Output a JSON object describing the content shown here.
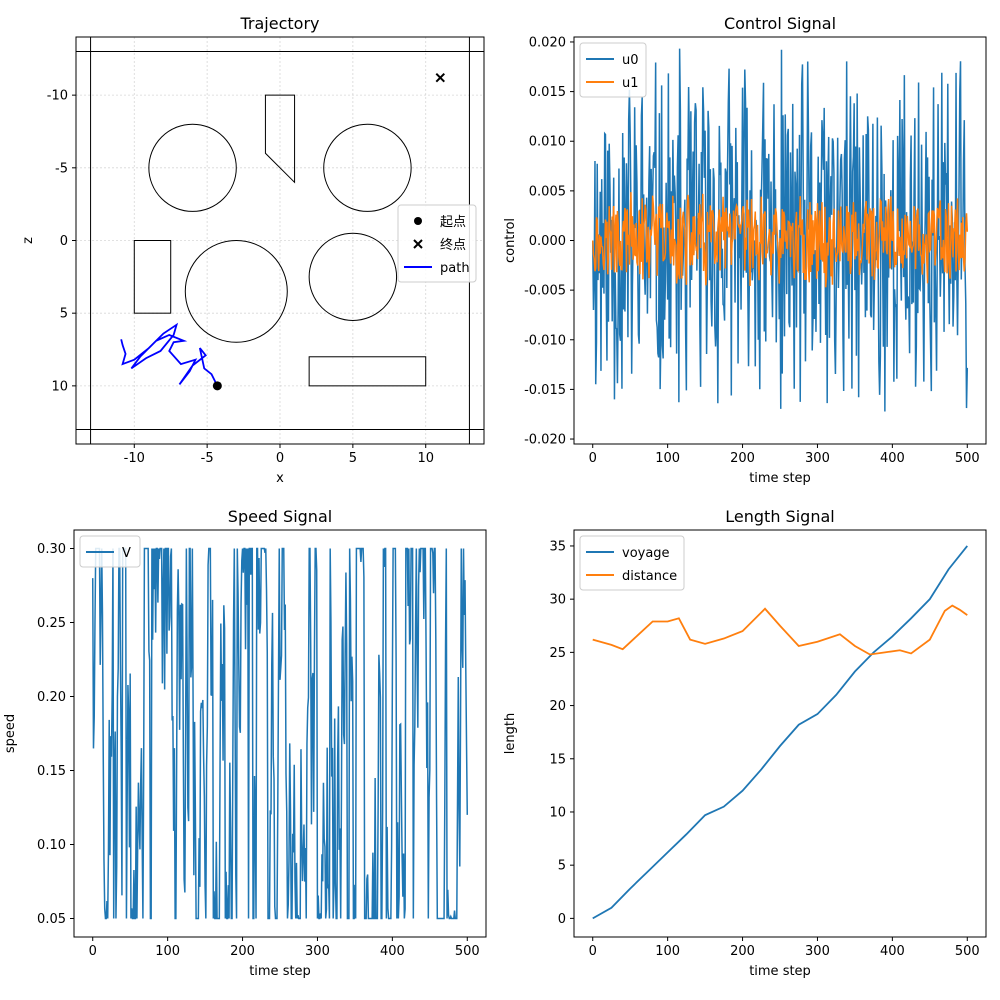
{
  "chart_data": [
    {
      "type": "scatter",
      "title": "Trajectory",
      "xlabel": "x",
      "ylabel": "z",
      "xlim": [
        -14,
        14
      ],
      "ylim": [
        14,
        -14
      ],
      "y_inverted": true,
      "grid": true,
      "xticks": [
        -10,
        -5,
        0,
        5,
        10
      ],
      "yticks": [
        -10,
        -5,
        0,
        5,
        10
      ],
      "tick_labels_x": [
        "-10",
        "-5",
        "0",
        "5",
        "10"
      ],
      "tick_labels_y": [
        "-10",
        "-5",
        "0",
        "5",
        "10"
      ],
      "legend": {
        "placement": "center-right",
        "entries": [
          "起点",
          "终点",
          "path"
        ]
      },
      "start": {
        "label": "起点",
        "x": -4.3,
        "z": 10.0
      },
      "goal": {
        "label": "终点",
        "x": 11.0,
        "z": -11.2
      },
      "path_color": "#0000ff",
      "path": [
        [
          -4.3,
          10.0
        ],
        [
          -4.7,
          9.2
        ],
        [
          -5.2,
          8.8
        ],
        [
          -5.5,
          7.4
        ],
        [
          -5.1,
          7.9
        ],
        [
          -6.0,
          8.6
        ],
        [
          -6.9,
          9.9
        ],
        [
          -6.2,
          9.0
        ],
        [
          -5.8,
          8.2
        ],
        [
          -6.8,
          8.5
        ],
        [
          -7.6,
          7.6
        ],
        [
          -7.3,
          7.0
        ],
        [
          -6.6,
          6.9
        ],
        [
          -7.6,
          6.5
        ],
        [
          -8.5,
          6.9
        ],
        [
          -9.6,
          8.0
        ],
        [
          -10.2,
          8.8
        ],
        [
          -9.2,
          8.1
        ],
        [
          -8.2,
          7.6
        ],
        [
          -7.3,
          6.5
        ],
        [
          -7.1,
          5.8
        ],
        [
          -8.0,
          6.4
        ],
        [
          -9.0,
          7.4
        ],
        [
          -10.0,
          8.2
        ],
        [
          -10.8,
          8.5
        ],
        [
          -10.6,
          7.8
        ],
        [
          -10.8,
          7.2
        ],
        [
          -10.9,
          6.8
        ]
      ],
      "obstacles": {
        "circles": [
          {
            "cx": -6,
            "cz": -5,
            "r": 3
          },
          {
            "cx": 6,
            "cz": -5,
            "r": 3
          },
          {
            "cx": -3,
            "cz": 3.5,
            "r": 3.5
          },
          {
            "cx": 5,
            "cz": 2.5,
            "r": 3
          }
        ],
        "rects": [
          {
            "x0": -10,
            "z0": 0,
            "x1": -7.5,
            "z1": 5
          },
          {
            "x0": 2,
            "z0": 8,
            "x1": 10,
            "z1": 10
          }
        ],
        "polygons": [
          [
            [
              -1,
              -10
            ],
            [
              1,
              -10
            ],
            [
              1,
              -4
            ],
            [
              -1,
              -6
            ]
          ]
        ],
        "bounds": {
          "outer": [
            -14,
            -13.5,
            14,
            13.5
          ],
          "inner": [
            -13,
            -13,
            13,
            13
          ]
        }
      }
    },
    {
      "type": "line",
      "title": "Control Signal",
      "xlabel": "time step",
      "ylabel": "control",
      "xlim": [
        -25,
        525
      ],
      "ylim": [
        -0.0205,
        0.0205
      ],
      "xticks": [
        0,
        100,
        200,
        300,
        400,
        500
      ],
      "yticks": [
        0.02,
        0.015,
        0.01,
        0.005,
        0.0,
        -0.005,
        -0.01,
        -0.015,
        -0.02
      ],
      "tick_labels_x": [
        "0",
        "100",
        "200",
        "300",
        "400",
        "500"
      ],
      "tick_labels_y": [
        "0.020",
        "0.015",
        "0.010",
        "0.005",
        "0.000",
        "-0.005",
        "-0.010",
        "-0.015",
        "-0.020"
      ],
      "legend": {
        "placement": "top-left"
      },
      "series": [
        {
          "name": "u0",
          "color": "#1f77b4",
          "amplitude": 0.02,
          "n": 501,
          "appearance": "noise spanning full range"
        },
        {
          "name": "u1",
          "color": "#ff7f0e",
          "amplitude": 0.005,
          "n": 501,
          "appearance": "noise around zero"
        }
      ]
    },
    {
      "type": "line",
      "title": "Speed Signal",
      "xlabel": "time step",
      "ylabel": "speed",
      "xlim": [
        -25,
        525
      ],
      "ylim": [
        0.0375,
        0.3125
      ],
      "xticks": [
        0,
        100,
        200,
        300,
        400,
        500
      ],
      "yticks": [
        0.05,
        0.1,
        0.15,
        0.2,
        0.25,
        0.3
      ],
      "tick_labels_x": [
        "0",
        "100",
        "200",
        "300",
        "400",
        "500"
      ],
      "tick_labels_y": [
        "0.05",
        "0.10",
        "0.15",
        "0.20",
        "0.25",
        "0.30"
      ],
      "legend": {
        "placement": "top-left"
      },
      "series": [
        {
          "name": "V",
          "color": "#1f77b4",
          "min": 0.05,
          "max": 0.3,
          "n": 501,
          "start": 0.28,
          "end": 0.12
        }
      ]
    },
    {
      "type": "line",
      "title": "Length Signal",
      "xlabel": "time step",
      "ylabel": "length",
      "xlim": [
        -25,
        525
      ],
      "ylim": [
        -1.75,
        36.5
      ],
      "xticks": [
        0,
        100,
        200,
        300,
        400,
        500
      ],
      "yticks": [
        0,
        5,
        10,
        15,
        20,
        25,
        30,
        35
      ],
      "tick_labels_x": [
        "0",
        "100",
        "200",
        "300",
        "400",
        "500"
      ],
      "tick_labels_y": [
        "0",
        "5",
        "10",
        "15",
        "20",
        "25",
        "30",
        "35"
      ],
      "legend": {
        "placement": "top-left"
      },
      "series": [
        {
          "name": "voyage",
          "color": "#1f77b4",
          "points": [
            [
              0,
              0.0
            ],
            [
              25,
              1.0
            ],
            [
              50,
              2.8
            ],
            [
              75,
              4.5
            ],
            [
              100,
              6.2
            ],
            [
              125,
              7.9
            ],
            [
              150,
              9.7
            ],
            [
              175,
              10.5
            ],
            [
              200,
              12.0
            ],
            [
              225,
              14.0
            ],
            [
              250,
              16.2
            ],
            [
              275,
              18.2
            ],
            [
              300,
              19.2
            ],
            [
              325,
              21.0
            ],
            [
              350,
              23.2
            ],
            [
              375,
              25.0
            ],
            [
              400,
              26.5
            ],
            [
              425,
              28.2
            ],
            [
              450,
              30.0
            ],
            [
              475,
              32.8
            ],
            [
              500,
              35.0
            ]
          ]
        },
        {
          "name": "distance",
          "color": "#ff7f0e",
          "points": [
            [
              0,
              26.2
            ],
            [
              25,
              25.7
            ],
            [
              40,
              25.3
            ],
            [
              60,
              26.6
            ],
            [
              80,
              27.9
            ],
            [
              100,
              27.9
            ],
            [
              115,
              28.2
            ],
            [
              130,
              26.2
            ],
            [
              150,
              25.8
            ],
            [
              175,
              26.3
            ],
            [
              200,
              27.0
            ],
            [
              230,
              29.1
            ],
            [
              250,
              27.5
            ],
            [
              275,
              25.6
            ],
            [
              300,
              26.0
            ],
            [
              330,
              26.7
            ],
            [
              350,
              25.6
            ],
            [
              370,
              24.8
            ],
            [
              390,
              25.0
            ],
            [
              410,
              25.2
            ],
            [
              425,
              24.9
            ],
            [
              450,
              26.2
            ],
            [
              470,
              28.9
            ],
            [
              480,
              29.4
            ],
            [
              490,
              29.0
            ],
            [
              500,
              28.5
            ]
          ]
        }
      ]
    }
  ]
}
